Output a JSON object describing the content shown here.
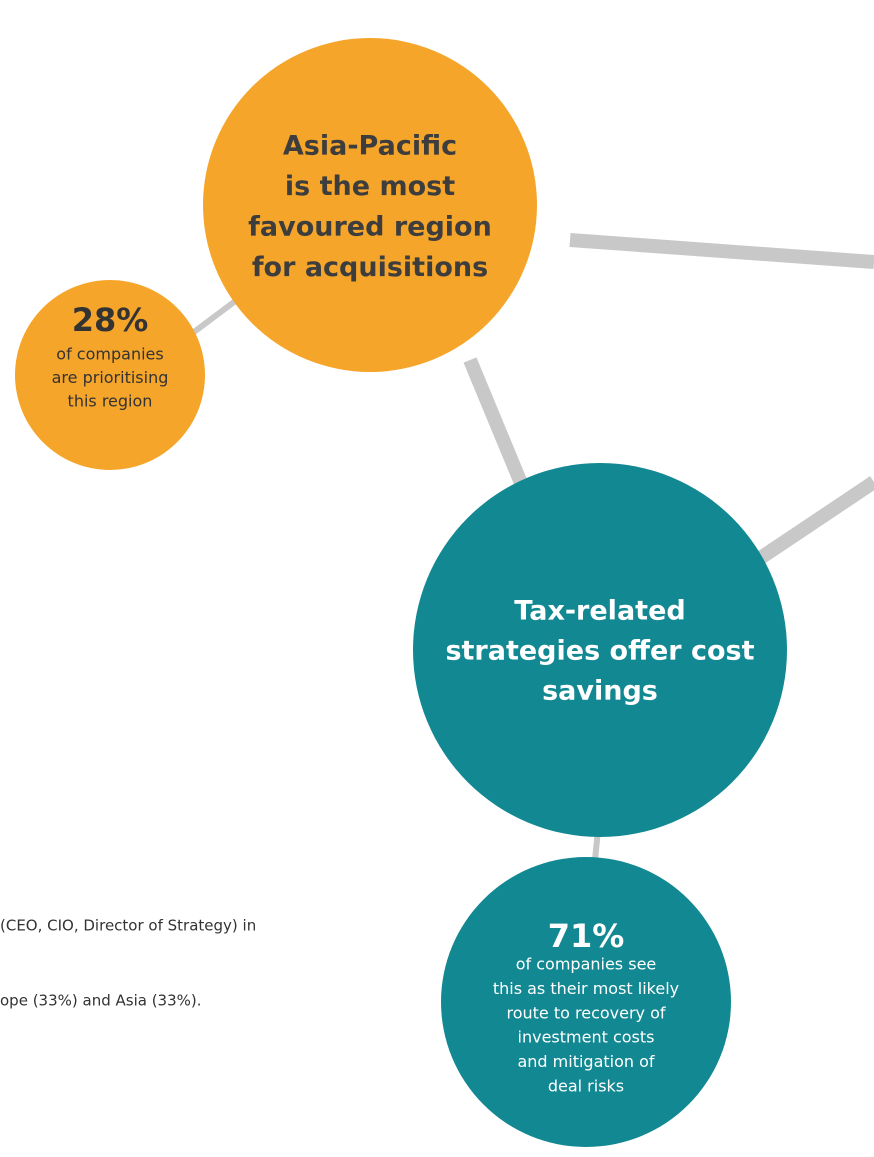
{
  "nodes": [
    {
      "lines": [
        "Asia-Pacific",
        "is the most",
        "favoured region",
        "for acquisitions"
      ]
    },
    {
      "stat": "28%",
      "lines": [
        "of companies",
        "are prioritising",
        "this region"
      ]
    },
    {
      "lines": [
        "Tax-related",
        "strategies offer cost",
        "savings"
      ]
    },
    {
      "stat": "71%",
      "lines": [
        "of companies see",
        "this as their most likely",
        "route to recovery of",
        "investment costs",
        "and mitigation of",
        "deal risks"
      ]
    }
  ],
  "footnotes": [
    "(CEO, CIO, Director of Strategy) in",
    "ope (33%) and Asia (33%)."
  ]
}
